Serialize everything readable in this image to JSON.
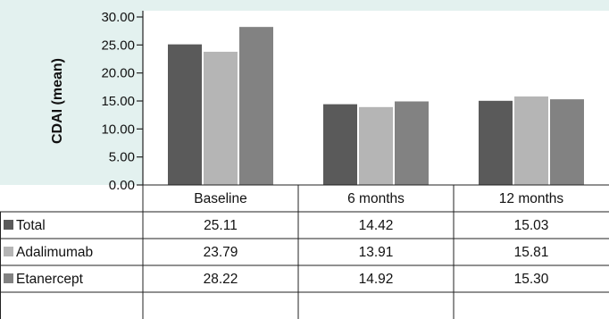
{
  "chart_data": {
    "type": "bar",
    "title": "",
    "xlabel": "",
    "ylabel": "CDAI (mean)",
    "ylim": [
      0,
      30
    ],
    "yticks": [
      "30.00",
      "25.00",
      "20.00",
      "15.00",
      "10.00",
      "5.00",
      "0.00"
    ],
    "categories": [
      "Baseline",
      "6 months",
      "12 months"
    ],
    "series": [
      {
        "name": "Total",
        "values": [
          25.11,
          14.42,
          15.03
        ],
        "display": [
          "25.11",
          "14.42",
          "15.03"
        ],
        "color": "#5a5a5a"
      },
      {
        "name": "Adalimumab",
        "values": [
          23.79,
          13.91,
          15.81
        ],
        "display": [
          "23.79",
          "13.91",
          "15.81"
        ],
        "color": "#b5b5b5"
      },
      {
        "name": "Etanercept",
        "values": [
          28.22,
          14.92,
          15.3
        ],
        "display": [
          "28.22",
          "14.92",
          "15.30"
        ],
        "color": "#828282"
      }
    ],
    "grid": false,
    "legend": "data table below chart"
  },
  "colors": {
    "background": "#e3f1ef",
    "plot_background": "#ffffff",
    "lines": "#222222"
  }
}
